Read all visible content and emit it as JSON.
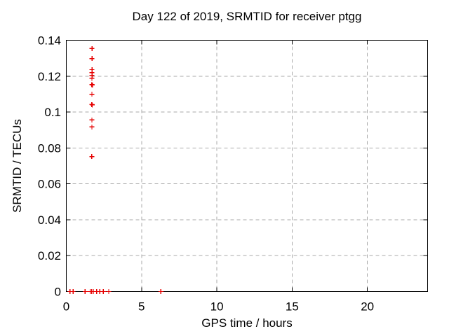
{
  "chart_data": {
    "type": "scatter",
    "title": "Day 122 of 2019, SRMTID for receiver ptgg",
    "xlabel": "GPS time / hours",
    "ylabel": "SRMTID / TECUs",
    "xlim": [
      0,
      24
    ],
    "ylim": [
      0,
      0.14
    ],
    "xticks": {
      "values": [
        0,
        5,
        10,
        15,
        20
      ],
      "labels": [
        "0",
        "5",
        "10",
        "15",
        "20"
      ]
    },
    "yticks": {
      "values": [
        0,
        0.02,
        0.04,
        0.06,
        0.08,
        0.1,
        0.12,
        0.14
      ],
      "labels": [
        "0",
        "0.02",
        "0.04",
        "0.06",
        "0.08",
        "0.1",
        "0.12",
        "0.14"
      ]
    },
    "grid": true,
    "legend": "none",
    "marker": "plus",
    "marker_color": "#e60000",
    "axis_color": "#000000",
    "grid_color": "#a9a9a9",
    "grid_dash": "5,4",
    "series": [
      {
        "name": "SRMTID",
        "points": [
          [
            1.71,
            0.1354
          ],
          [
            1.71,
            0.1298
          ],
          [
            1.71,
            0.1236
          ],
          [
            1.71,
            0.122
          ],
          [
            1.71,
            0.1204
          ],
          [
            1.7,
            0.1188
          ],
          [
            1.69,
            0.1153
          ],
          [
            1.73,
            0.1151
          ],
          [
            1.7,
            0.1099
          ],
          [
            1.69,
            0.1042
          ],
          [
            1.72,
            0.104
          ],
          [
            1.7,
            0.0956
          ],
          [
            1.7,
            0.0917
          ],
          [
            1.69,
            0.0752
          ],
          [
            0.25,
            0
          ],
          [
            0.45,
            0
          ],
          [
            1.25,
            0
          ],
          [
            1.58,
            0
          ],
          [
            1.68,
            0
          ],
          [
            1.78,
            0
          ],
          [
            2.02,
            0
          ],
          [
            2.22,
            0
          ],
          [
            2.46,
            0
          ],
          [
            2.82,
            0
          ],
          [
            6.28,
            0
          ]
        ]
      }
    ]
  }
}
